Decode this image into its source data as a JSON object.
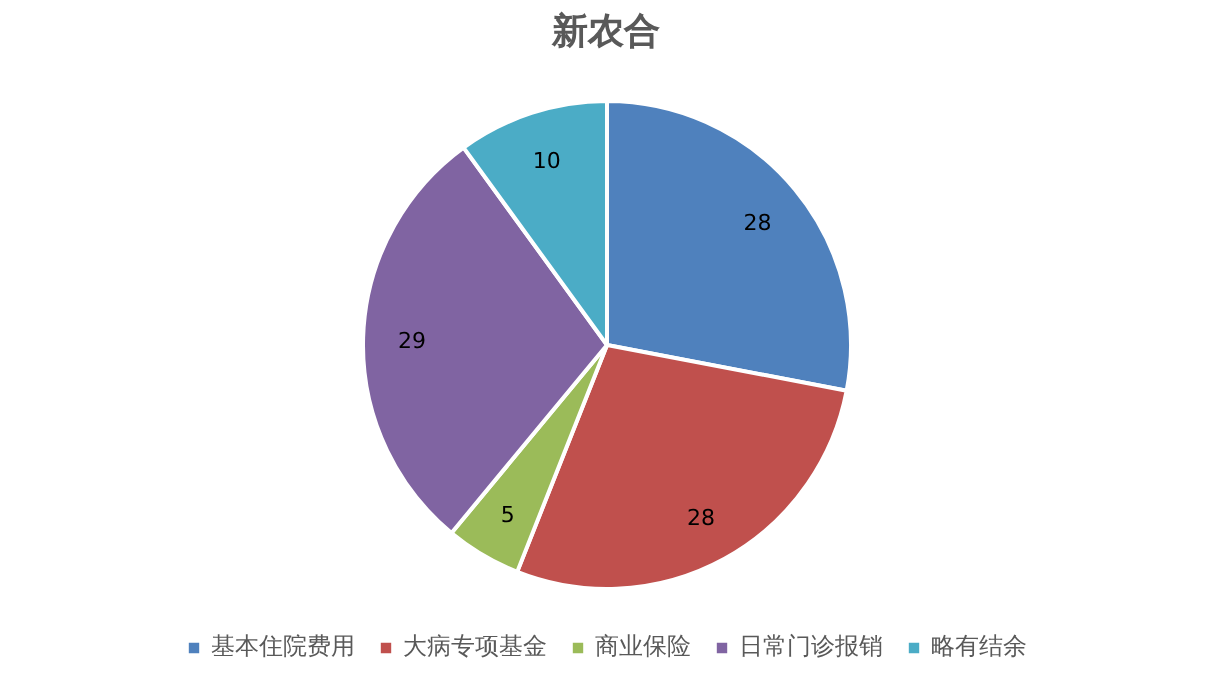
{
  "chart_data": {
    "type": "pie",
    "title": "新农合",
    "categories": [
      "基本住院费用",
      "大病专项基金",
      "商业保险",
      "日常门诊报销",
      "略有结余"
    ],
    "values": [
      28,
      28,
      5,
      29,
      10
    ],
    "colors": [
      "#4f81bd",
      "#c0504d",
      "#9bbb59",
      "#8064a2",
      "#4bacc6"
    ],
    "data_labels": true,
    "legend": "bottom"
  }
}
